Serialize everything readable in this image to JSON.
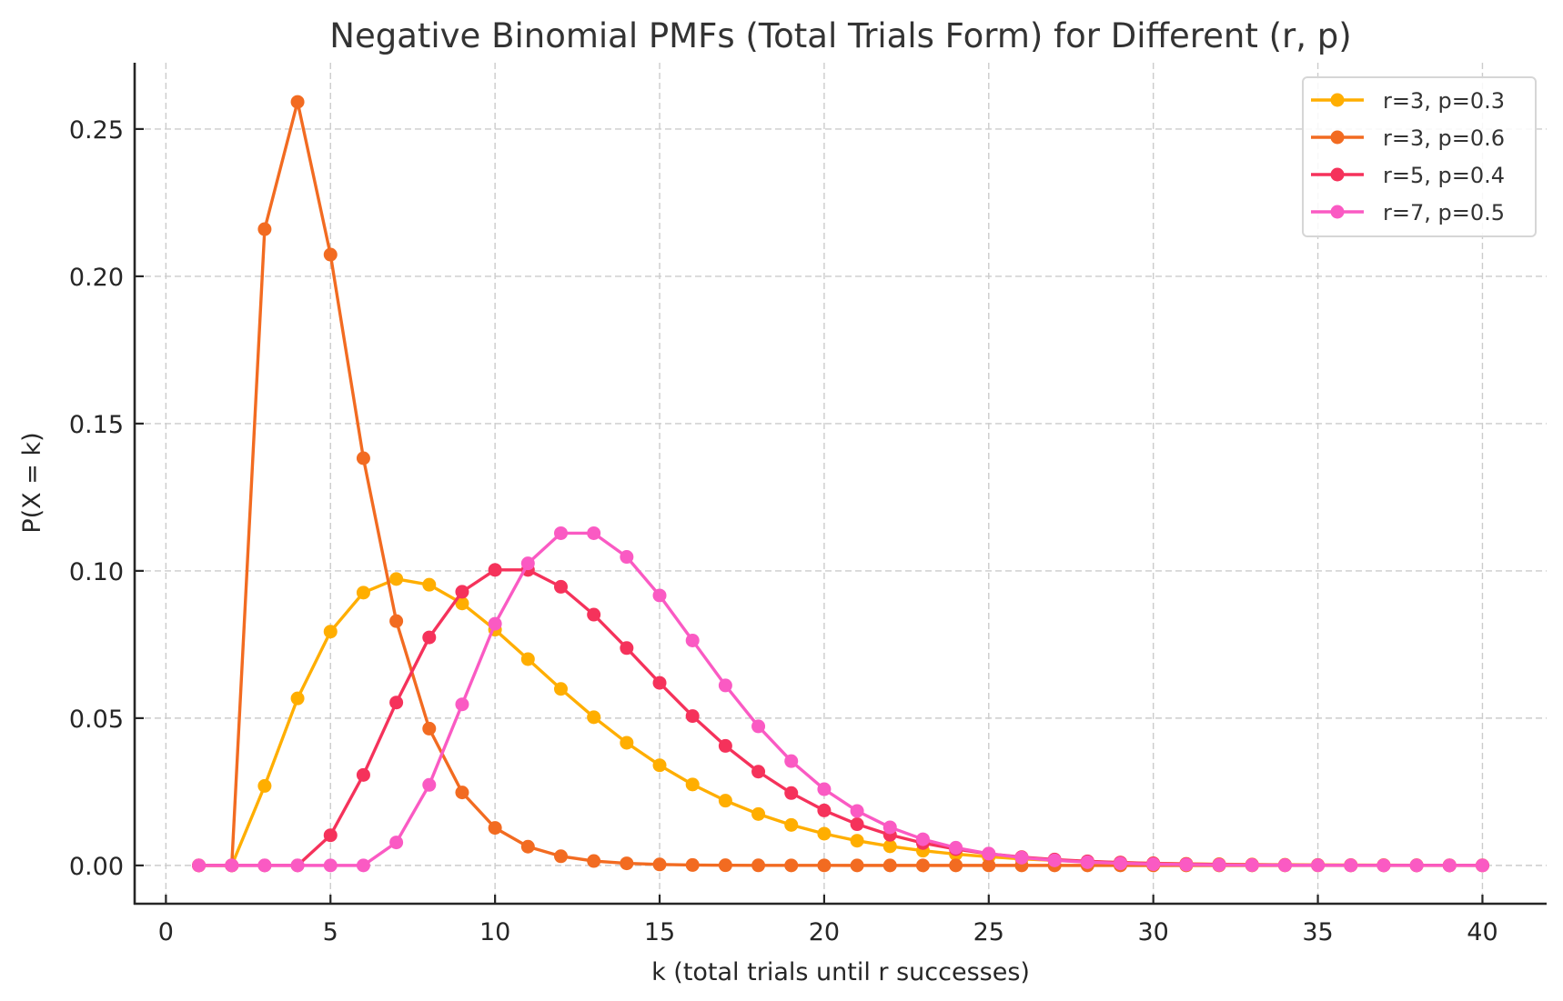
{
  "chart_data": {
    "type": "line",
    "title": "Negative Binomial PMFs (Total Trials Form) for Different (r, p)",
    "xlabel": "k (total trials until r successes)",
    "ylabel": "P(X = k)",
    "xlim": [
      -0.95,
      41.95
    ],
    "ylim": [
      -0.013,
      0.2725
    ],
    "xticks": [
      0,
      5,
      10,
      15,
      20,
      25,
      30,
      35,
      40
    ],
    "xtick_labels": [
      "0",
      "5",
      "10",
      "15",
      "20",
      "25",
      "30",
      "35",
      "40"
    ],
    "yticks": [
      0.0,
      0.05,
      0.1,
      0.15,
      0.2,
      0.25
    ],
    "ytick_labels": [
      "0.00",
      "0.05",
      "0.10",
      "0.15",
      "0.20",
      "0.25"
    ],
    "grid": true,
    "legend_position": "top-right",
    "x": [
      1,
      2,
      3,
      4,
      5,
      6,
      7,
      8,
      9,
      10,
      11,
      12,
      13,
      14,
      15,
      16,
      17,
      18,
      19,
      20,
      21,
      22,
      23,
      24,
      25,
      26,
      27,
      28,
      29,
      30,
      31,
      32,
      33,
      34,
      35,
      36,
      37,
      38,
      39,
      40
    ],
    "series": [
      {
        "name": "r=3, p=0.3",
        "color": "#FFAE00",
        "values": [
          0,
          0,
          0.027,
          0.0567,
          0.07938,
          0.09261,
          0.09724,
          0.09529,
          0.08894,
          0.08004,
          0.07004,
          0.05992,
          0.05033,
          0.04164,
          0.03401,
          0.02748,
          0.02199,
          0.01745,
          0.01375,
          0.01077,
          0.00838,
          0.00649,
          0.00501,
          0.00385,
          0.00294,
          0.00224,
          0.0017,
          0.00129,
          0.00097,
          0.00073,
          0.00055,
          0.00041,
          0.00031,
          0.00023,
          0.00017,
          0.00013,
          0.0001,
          7e-05,
          5e-05,
          4e-05
        ]
      },
      {
        "name": "r=3, p=0.6",
        "color": "#F26B21",
        "values": [
          0,
          0,
          0.216,
          0.2592,
          0.20736,
          0.13824,
          0.08294,
          0.04645,
          0.02477,
          0.01274,
          0.00637,
          0.00311,
          0.00149,
          0.0007,
          0.00033,
          0.00015,
          7e-05,
          3e-05,
          1e-05,
          1e-05,
          0,
          0,
          0,
          0,
          0,
          0,
          0,
          0,
          0,
          0,
          0,
          0,
          0,
          0,
          0,
          0,
          0,
          0,
          0,
          0
        ]
      },
      {
        "name": "r=5, p=0.4",
        "color": "#F5325B",
        "values": [
          0,
          0,
          0,
          0,
          0.01024,
          0.03072,
          0.0553,
          0.07741,
          0.0929,
          0.10033,
          0.10033,
          0.09459,
          0.08514,
          0.07379,
          0.06198,
          0.05071,
          0.04057,
          0.03183,
          0.02456,
          0.01867,
          0.014,
          0.01038,
          0.00761,
          0.00552,
          0.00397,
          0.00283,
          0.002,
          0.0014,
          0.00098,
          0.00068,
          0.00047,
          0.00032,
          0.00022,
          0.00015,
          0.0001,
          7e-05,
          5e-05,
          3e-05,
          2e-05,
          1e-05
        ]
      },
      {
        "name": "r=7, p=0.5",
        "color": "#FA5AC3",
        "values": [
          0,
          0,
          0,
          0,
          0,
          0,
          0.00781,
          0.02734,
          0.05469,
          0.08203,
          0.10254,
          0.11279,
          0.11279,
          0.10474,
          0.09164,
          0.07637,
          0.0611,
          0.04721,
          0.03541,
          0.02588,
          0.01849,
          0.01294,
          0.00889,
          0.00601,
          0.004,
          0.00263,
          0.00171,
          0.0011,
          0.0007,
          0.00044,
          0.00028,
          0.00017,
          0.00011,
          7e-05,
          4e-05,
          3e-05,
          2e-05,
          1e-05,
          1e-05,
          0
        ]
      }
    ]
  }
}
